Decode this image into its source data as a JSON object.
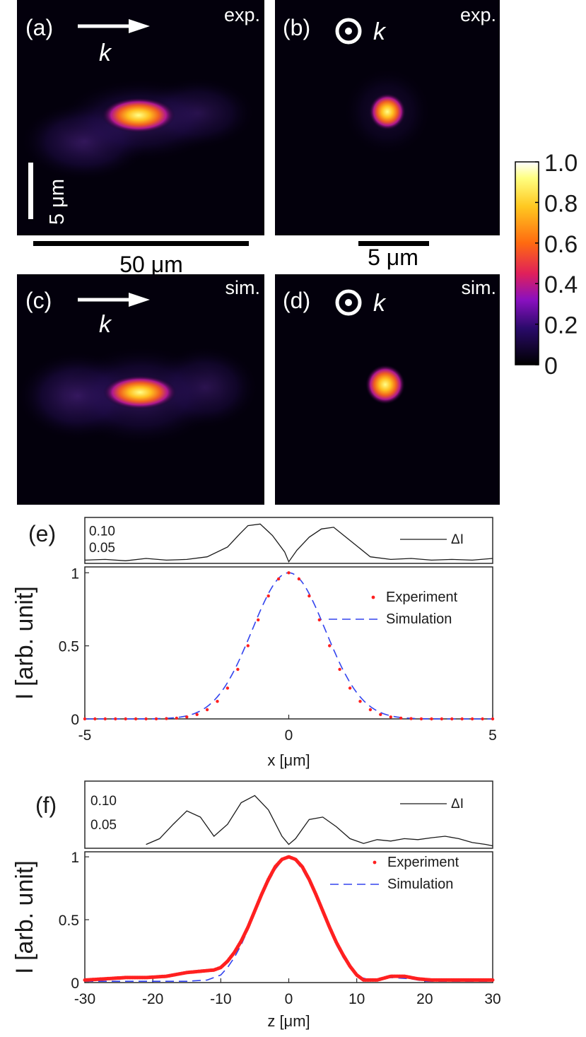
{
  "panels": {
    "a": {
      "letter": "(a)",
      "tag": "exp.",
      "k": "k",
      "vertical_scale": "5 μm",
      "bottom_scale": "50 μm"
    },
    "b": {
      "letter": "(b)",
      "tag": "exp.",
      "k": "k",
      "bottom_scale": "5 μm"
    },
    "c": {
      "letter": "(c)",
      "tag": "sim.",
      "k": "k"
    },
    "d": {
      "letter": "(d)",
      "tag": "sim.",
      "k": "k"
    }
  },
  "colorbar": {
    "ticks": [
      "1.0",
      "0.8",
      "0.6",
      "0.4",
      "0.2",
      "0"
    ],
    "tick_values": [
      1.0,
      0.8,
      0.6,
      0.4,
      0.2,
      0
    ]
  },
  "colors": {
    "experiment": "#ff2020",
    "simulation": "#3344ee",
    "delta": "#1a1a1a"
  },
  "chart_data": [
    {
      "id": "e-diff",
      "type": "line",
      "panel_label": "(e)",
      "legend": [
        "ΔI"
      ],
      "ytick_labels": [
        "0.10",
        "0.05"
      ],
      "ytick_values": [
        0.1,
        0.05
      ],
      "xlim": [
        -5,
        5
      ],
      "ylim": [
        0,
        0.14
      ],
      "x": [
        -5,
        -4.5,
        -4,
        -3.5,
        -3,
        -2.5,
        -2,
        -1.5,
        -1.2,
        -1,
        -0.7,
        -0.4,
        -0.1,
        0,
        0.2,
        0.5,
        0.8,
        1.1,
        1.5,
        2,
        2.5,
        3,
        3.5,
        4,
        4.5,
        5
      ],
      "y": [
        0.01,
        0.012,
        0.008,
        0.015,
        0.01,
        0.012,
        0.02,
        0.05,
        0.09,
        0.115,
        0.12,
        0.085,
        0.035,
        0.005,
        0.04,
        0.08,
        0.105,
        0.11,
        0.07,
        0.02,
        0.012,
        0.015,
        0.01,
        0.012,
        0.01,
        0.015
      ]
    },
    {
      "id": "e-main",
      "type": "line",
      "legend": [
        "Experiment",
        "Simulation"
      ],
      "ylabel": "I [arb. unit]",
      "xlabel": "x [μm]",
      "xtick_labels": [
        "-5",
        "0",
        "5"
      ],
      "xtick_values": [
        -5,
        0,
        5
      ],
      "ytick_labels": [
        "1",
        "0.5",
        "0"
      ],
      "ytick_values": [
        1,
        0.5,
        0
      ],
      "xlim": [
        -5,
        5
      ],
      "ylim": [
        0,
        1.04
      ],
      "series": [
        {
          "name": "Experiment",
          "style": "dots",
          "sigma": 0.85,
          "step": 0.25
        },
        {
          "name": "Simulation",
          "style": "dashed",
          "sigma": 0.9,
          "step": 0.05
        }
      ]
    },
    {
      "id": "f-diff",
      "type": "line",
      "panel_label": "(f)",
      "legend": [
        "ΔI"
      ],
      "ytick_labels": [
        "0.10",
        "0.05"
      ],
      "ytick_values": [
        0.1,
        0.05
      ],
      "xlim": [
        -30,
        30
      ],
      "ylim": [
        0,
        0.14
      ],
      "x": [
        -21,
        -19,
        -17,
        -15,
        -13,
        -11,
        -9,
        -7,
        -5,
        -3,
        -1,
        0,
        1,
        2,
        3,
        5,
        7,
        9,
        11,
        13,
        15,
        17,
        19,
        21,
        23,
        25,
        27,
        29,
        30
      ],
      "y": [
        0.008,
        0.02,
        0.05,
        0.078,
        0.065,
        0.025,
        0.05,
        0.095,
        0.11,
        0.08,
        0.025,
        0.008,
        0.02,
        0.04,
        0.06,
        0.065,
        0.045,
        0.02,
        0.01,
        0.018,
        0.015,
        0.02,
        0.018,
        0.022,
        0.025,
        0.02,
        0.012,
        0.008,
        0.005
      ]
    },
    {
      "id": "f-main",
      "type": "line",
      "legend": [
        "Experiment",
        "Simulation"
      ],
      "ylabel": "I [arb. unit]",
      "xlabel": "z [μm]",
      "xtick_labels": [
        "-30",
        "-20",
        "-10",
        "0",
        "10",
        "20",
        "30"
      ],
      "xtick_values": [
        -30,
        -20,
        -10,
        0,
        10,
        20,
        30
      ],
      "ytick_labels": [
        "1",
        "0.5",
        "0"
      ],
      "ytick_values": [
        1,
        0.5,
        0
      ],
      "xlim": [
        -30,
        30
      ],
      "ylim": [
        0,
        1.04
      ],
      "series": [
        {
          "name": "Experiment",
          "style": "thick-dotted",
          "x": [
            -30,
            -27,
            -24,
            -21,
            -18,
            -15,
            -13,
            -11,
            -10,
            -9,
            -8,
            -7,
            -6,
            -5,
            -4,
            -3,
            -2,
            -1,
            0,
            1,
            2,
            3,
            4,
            5,
            6,
            7,
            8,
            9,
            10,
            11,
            13,
            15,
            17,
            19,
            21,
            24,
            27,
            30
          ],
          "y": [
            0.02,
            0.03,
            0.04,
            0.04,
            0.05,
            0.08,
            0.09,
            0.1,
            0.12,
            0.17,
            0.24,
            0.33,
            0.44,
            0.57,
            0.7,
            0.82,
            0.92,
            0.98,
            1.0,
            0.98,
            0.92,
            0.82,
            0.7,
            0.57,
            0.44,
            0.32,
            0.22,
            0.13,
            0.06,
            0.02,
            0.02,
            0.05,
            0.05,
            0.03,
            0.02,
            0.02,
            0.02,
            0.02
          ]
        },
        {
          "name": "Simulation",
          "style": "dashed",
          "x": [
            -30,
            -25,
            -20,
            -15,
            -12,
            -10,
            -9,
            -8,
            -7,
            -6,
            -5,
            -4,
            -3,
            -2,
            -1,
            0,
            1,
            2,
            3,
            4,
            5,
            6,
            7,
            8,
            9,
            10,
            12,
            15,
            18,
            20,
            25,
            30
          ],
          "y": [
            0.01,
            0.01,
            0.01,
            0.01,
            0.02,
            0.06,
            0.12,
            0.2,
            0.3,
            0.42,
            0.55,
            0.68,
            0.8,
            0.9,
            0.97,
            1.0,
            0.97,
            0.9,
            0.8,
            0.68,
            0.55,
            0.42,
            0.3,
            0.2,
            0.12,
            0.05,
            0.02,
            0.04,
            0.03,
            0.01,
            0.01,
            0.01
          ]
        }
      ]
    }
  ]
}
